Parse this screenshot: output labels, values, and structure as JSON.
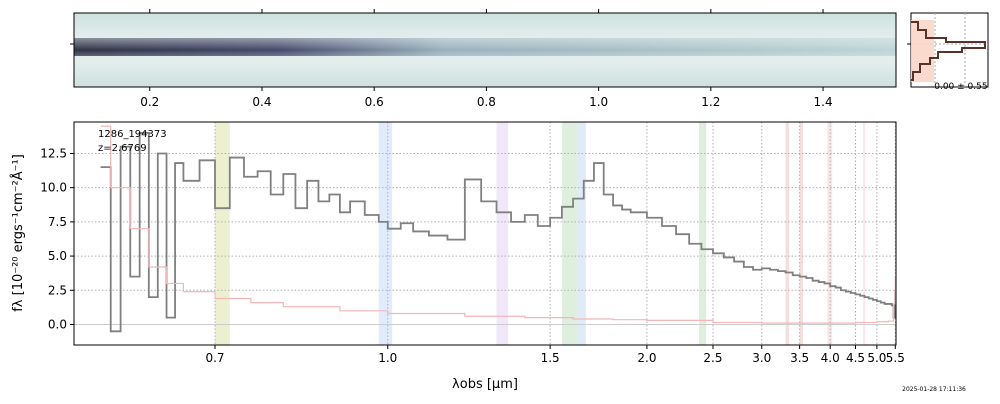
{
  "timestamp": "2025-01-28 17:11:36",
  "panel_2d": {
    "top_ticks": [
      "0.2",
      "0.4",
      "0.6",
      "0.8",
      "1.0",
      "1.2",
      "1.4"
    ]
  },
  "side_hist": {
    "label": "-0.00 ± 0.55"
  },
  "chart_data": {
    "type": "line",
    "annotation_id": "1286_194373",
    "annotation_z": "z=2.6769",
    "xlabel": "λobs [μm]",
    "ylabel": "fλ [10⁻²⁰ ergs⁻¹cm⁻²Å⁻¹]",
    "x_ticks": [
      "0.7",
      "1.0",
      "1.5",
      "2.0",
      "2.5",
      "3.0",
      "3.5",
      "4.0",
      "4.5",
      "5.0",
      "5.5"
    ],
    "y_ticks": [
      "0.0",
      "2.5",
      "5.0",
      "7.5",
      "10.0",
      "12.5"
    ],
    "ylim": [
      -1.5,
      14.8
    ],
    "grid": true,
    "series": [
      {
        "color": "#808080",
        "x": [
          0.57,
          0.58,
          0.59,
          0.6,
          0.61,
          0.62,
          0.63,
          0.64,
          0.65,
          0.66,
          0.68,
          0.7,
          0.72,
          0.74,
          0.76,
          0.78,
          0.8,
          0.82,
          0.84,
          0.86,
          0.88,
          0.9,
          0.92,
          0.95,
          0.98,
          1.0,
          1.03,
          1.06,
          1.1,
          1.15,
          1.2,
          1.25,
          1.3,
          1.35,
          1.4,
          1.45,
          1.5,
          1.55,
          1.6,
          1.65,
          1.7,
          1.75,
          1.8,
          1.85,
          1.9,
          2.0,
          2.1,
          2.2,
          2.3,
          2.4,
          2.5,
          2.6,
          2.7,
          2.8,
          2.9,
          3.0,
          3.1,
          3.2,
          3.3,
          3.4,
          3.5,
          3.6,
          3.7,
          3.8,
          3.9,
          4.0,
          4.1,
          4.2,
          4.3,
          4.4,
          4.5,
          4.6,
          4.7,
          4.8,
          4.9,
          5.0,
          5.1,
          5.2,
          5.3,
          5.4,
          5.45,
          5.5
        ],
        "y": [
          11.5,
          -0.5,
          13.0,
          3.5,
          14.0,
          2.0,
          12.5,
          0.5,
          11.8,
          10.5,
          12.0,
          8.5,
          12.2,
          10.8,
          11.2,
          9.5,
          11.0,
          8.5,
          10.5,
          9.0,
          9.5,
          8.2,
          9.0,
          8.0,
          7.5,
          7.0,
          7.4,
          6.8,
          6.5,
          6.2,
          10.6,
          9.0,
          8.2,
          7.5,
          8.0,
          7.2,
          7.8,
          8.6,
          9.2,
          10.5,
          11.8,
          9.5,
          8.7,
          8.4,
          8.2,
          7.8,
          7.2,
          6.6,
          5.9,
          5.5,
          5.2,
          4.9,
          4.6,
          4.2,
          4.0,
          4.1,
          4.0,
          3.9,
          3.8,
          3.6,
          3.5,
          3.4,
          3.2,
          3.1,
          3.0,
          2.8,
          2.7,
          2.5,
          2.4,
          2.3,
          2.2,
          2.1,
          2.0,
          1.9,
          1.8,
          1.7,
          1.6,
          1.5,
          1.5,
          1.4,
          0.5,
          2.5
        ]
      },
      {
        "color": "#f4b6b6",
        "x": [
          0.57,
          0.58,
          0.6,
          0.62,
          0.64,
          0.66,
          0.7,
          0.75,
          0.8,
          0.9,
          1.0,
          1.2,
          1.4,
          1.6,
          1.8,
          2.0,
          2.5,
          3.0,
          3.5,
          4.0,
          4.5,
          5.0,
          5.3,
          5.45,
          5.5
        ],
        "y": [
          14.5,
          10.0,
          7.0,
          4.2,
          3.0,
          2.4,
          1.9,
          1.6,
          1.3,
          1.0,
          0.8,
          0.6,
          0.5,
          0.4,
          0.35,
          0.3,
          0.15,
          0.1,
          0.1,
          0.1,
          0.15,
          0.2,
          0.25,
          1.5,
          3.5
        ]
      }
    ],
    "bands": [
      {
        "x0": 0.7,
        "x1": 0.72,
        "color": "#e9edc9"
      },
      {
        "x0": 0.98,
        "x1": 1.01,
        "color": "#dbe9fb"
      },
      {
        "x0": 1.3,
        "x1": 1.34,
        "color": "#ede4f7"
      },
      {
        "x0": 1.55,
        "x1": 1.62,
        "color": "#d8ecd8"
      },
      {
        "x0": 1.62,
        "x1": 1.66,
        "color": "#dce8f7"
      },
      {
        "x0": 2.38,
        "x1": 2.44,
        "color": "#d8ecd8"
      },
      {
        "x0": 3.3,
        "x1": 3.35,
        "color": "#f2d9d6"
      },
      {
        "x0": 3.5,
        "x1": 3.55,
        "color": "#f2d9d6"
      },
      {
        "x0": 3.95,
        "x1": 4.0,
        "color": "#fbe1d4"
      },
      {
        "x0": 4.0,
        "x1": 4.03,
        "color": "#ede4f7"
      },
      {
        "x0": 4.67,
        "x1": 4.71,
        "color": "#fbe0ea"
      }
    ]
  }
}
